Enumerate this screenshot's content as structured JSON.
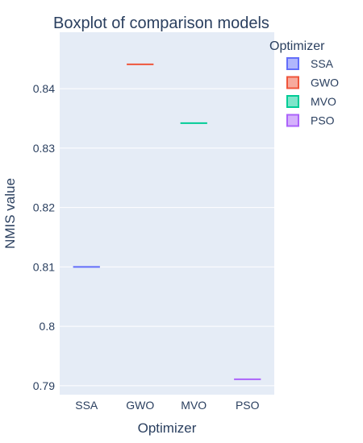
{
  "chart_data": {
    "type": "box",
    "title": "Boxplot of comparison models",
    "xlabel": "Optimizer",
    "ylabel": "NMIS value",
    "categories": [
      "SSA",
      "GWO",
      "MVO",
      "PSO"
    ],
    "series": [
      {
        "name": "SSA",
        "values": [
          0.81
        ],
        "color": "#636efa"
      },
      {
        "name": "GWO",
        "values": [
          0.8441
        ],
        "color": "#ef553b"
      },
      {
        "name": "MVO",
        "values": [
          0.8342
        ],
        "color": "#00cc96"
      },
      {
        "name": "PSO",
        "values": [
          0.7911
        ],
        "color": "#ab63fa"
      }
    ],
    "ylim": [
      0.7885,
      0.8495
    ],
    "yticks": [
      0.79,
      0.8,
      0.81,
      0.82,
      0.83,
      0.84
    ],
    "ytick_labels": [
      "0.79",
      "0.8",
      "0.81",
      "0.82",
      "0.83",
      "0.84"
    ],
    "legend": {
      "title": "Optimizer",
      "placement": "right"
    },
    "grid": true,
    "background": "#e5ecf6"
  }
}
